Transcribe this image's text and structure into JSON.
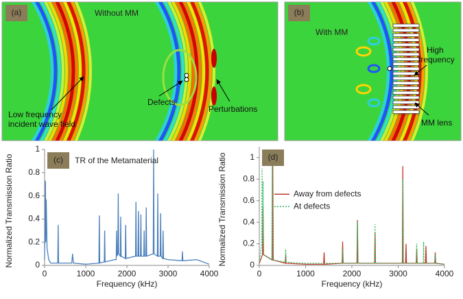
{
  "images": [
    {
      "label": "(a)",
      "title": "Without MM",
      "annotations": [
        [
          "Low frequency",
          "incident wave field"
        ],
        [
          "Defects"
        ],
        [
          "Perturbations"
        ]
      ]
    },
    {
      "label": "(b)",
      "title": "With MM",
      "annotations": [
        [
          "High",
          "frequency"
        ],
        [
          "MM lens"
        ]
      ]
    }
  ],
  "chart_data": [
    {
      "type": "line",
      "label": "(c)",
      "title": "TR of the Metamaterial",
      "xlabel": "Frequency (kHz)",
      "ylabel": "Normalized Transmission Ratio",
      "xlim": [
        0,
        4000
      ],
      "ylim": [
        0,
        1
      ],
      "xticks": [
        0,
        1000,
        2000,
        3000,
        4000
      ],
      "yticks": [
        0,
        0.2,
        0.4,
        0.6,
        0.8,
        1
      ],
      "color": "#4a7ebb",
      "x": [
        0,
        10,
        20,
        30,
        40,
        60,
        100,
        150,
        320,
        330,
        340,
        660,
        680,
        700,
        1000,
        1320,
        1330,
        1340,
        1450,
        1460,
        1470,
        1700,
        1740,
        1750,
        1760,
        1780,
        1790,
        1800,
        1840,
        1850,
        1860,
        1960,
        1970,
        1980,
        2210,
        2220,
        2230,
        2270,
        2280,
        2290,
        2330,
        2340,
        2350,
        2410,
        2420,
        2430,
        2460,
        2470,
        2480,
        2640,
        2650,
        2660,
        2740,
        2750,
        2760,
        2810,
        2820,
        2830,
        2870,
        2880,
        2890,
        3000,
        3340,
        3350,
        3360,
        3700,
        4000
      ],
      "values": [
        0.05,
        0.3,
        0.73,
        0.2,
        0.57,
        0.15,
        0.05,
        0.02,
        0.02,
        0.35,
        0.02,
        0.02,
        0.1,
        0.02,
        0.01,
        0.02,
        0.43,
        0.02,
        0.03,
        0.3,
        0.03,
        0.05,
        0.05,
        0.3,
        0.08,
        0.1,
        0.62,
        0.1,
        0.08,
        0.42,
        0.08,
        0.06,
        0.35,
        0.06,
        0.08,
        0.55,
        0.08,
        0.08,
        0.47,
        0.08,
        0.08,
        0.44,
        0.08,
        0.08,
        0.3,
        0.08,
        0.08,
        0.5,
        0.08,
        0.1,
        1.0,
        0.1,
        0.08,
        0.62,
        0.08,
        0.08,
        0.45,
        0.08,
        0.06,
        0.3,
        0.06,
        0.05,
        0.04,
        0.12,
        0.04,
        0.05,
        0.01
      ]
    },
    {
      "type": "line",
      "label": "(d)",
      "xlabel": "Frequency (kHz)",
      "ylabel": "Normalized Transmission Ratio",
      "xlim": [
        0,
        4000
      ],
      "ylim": [
        0,
        1.1
      ],
      "xticks": [
        0,
        1000,
        2000,
        3000,
        4000
      ],
      "yticks": [
        0,
        0.2,
        0.4,
        0.6,
        0.8,
        1
      ],
      "legend": "center left",
      "series": [
        {
          "name": "Away from defects",
          "color": "#c0392b",
          "line_style": "solid",
          "x": [
            0,
            70,
            80,
            90,
            280,
            290,
            300,
            560,
            570,
            580,
            1000,
            1390,
            1400,
            1410,
            1790,
            1800,
            1810,
            2110,
            2120,
            2130,
            2490,
            2500,
            2510,
            3090,
            3100,
            3110,
            3160,
            3170,
            3180,
            3390,
            3400,
            3410,
            3590,
            3600,
            3610,
            3790,
            3800,
            3810,
            4000
          ],
          "values": [
            0.02,
            0.1,
            0.55,
            0.1,
            0.05,
            1.0,
            0.05,
            0.02,
            0.1,
            0.02,
            0.01,
            0.01,
            0.12,
            0.01,
            0.02,
            0.22,
            0.02,
            0.02,
            0.42,
            0.02,
            0.02,
            0.3,
            0.02,
            0.02,
            0.92,
            0.02,
            0.02,
            0.2,
            0.02,
            0.02,
            0.15,
            0.02,
            0.02,
            0.18,
            0.02,
            0.02,
            0.12,
            0.02,
            0.01
          ]
        },
        {
          "name": "At defects",
          "color": "#2eb85c",
          "line_style": "dotted",
          "x": [
            0,
            50,
            60,
            70,
            75,
            80,
            90,
            270,
            280,
            290,
            560,
            570,
            580,
            1000,
            1790,
            1800,
            1810,
            2110,
            2120,
            2130,
            2490,
            2500,
            2510,
            3090,
            3100,
            3110,
            3390,
            3400,
            3410,
            3540,
            3550,
            3560,
            3790,
            3800,
            3810,
            4000
          ],
          "values": [
            0.03,
            0.2,
            0.9,
            0.2,
            0.3,
            0.78,
            0.1,
            0.05,
            0.97,
            0.05,
            0.03,
            0.15,
            0.03,
            0.02,
            0.02,
            0.15,
            0.02,
            0.02,
            0.4,
            0.02,
            0.02,
            0.38,
            0.02,
            0.02,
            0.8,
            0.02,
            0.02,
            0.2,
            0.02,
            0.02,
            0.22,
            0.02,
            0.02,
            0.1,
            0.02,
            0.01
          ]
        }
      ]
    }
  ]
}
